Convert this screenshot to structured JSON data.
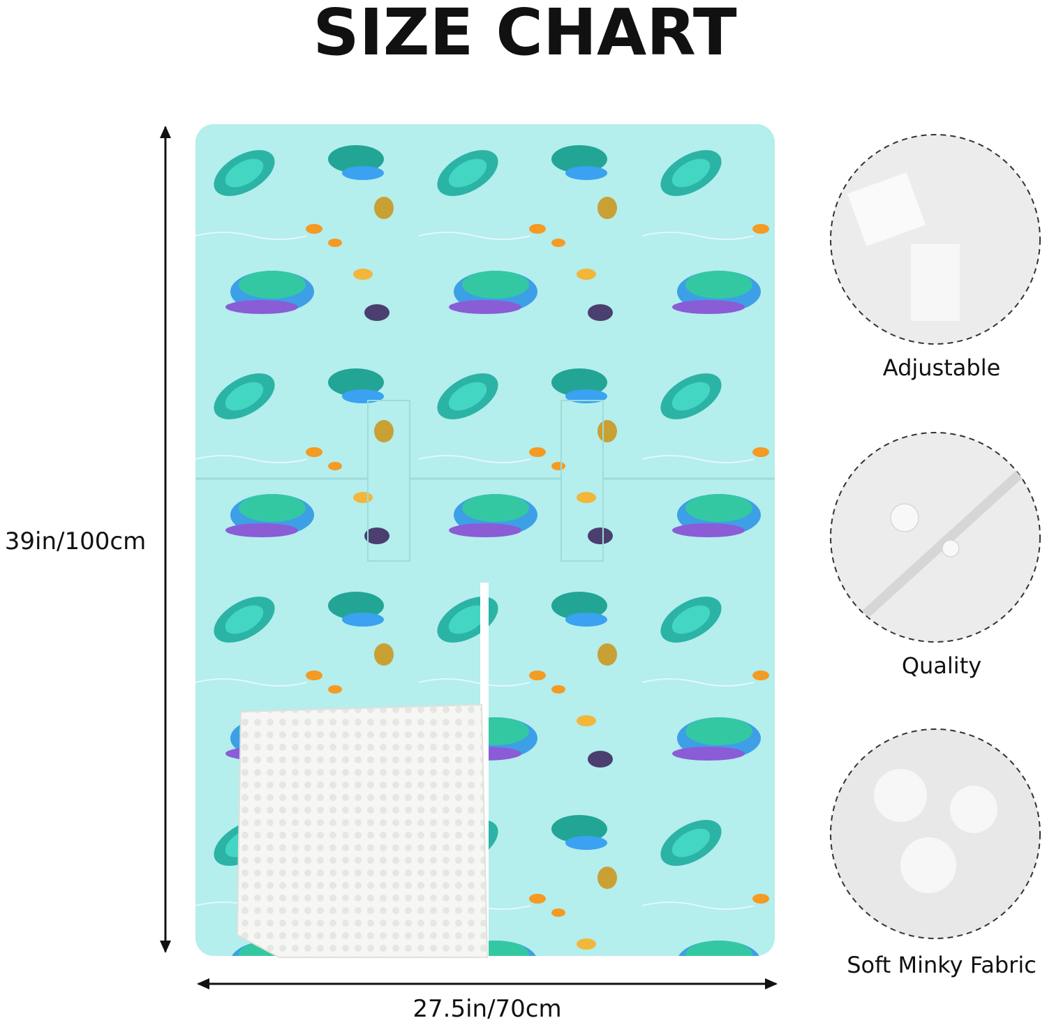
{
  "header": {
    "title": "SIZE CHART"
  },
  "dimensions": {
    "height": "39in/100cm",
    "width": "27.5in/70cm"
  },
  "features": [
    {
      "label": "Adjustable"
    },
    {
      "label": "Quality"
    },
    {
      "label": "Soft Minky Fabric"
    }
  ]
}
